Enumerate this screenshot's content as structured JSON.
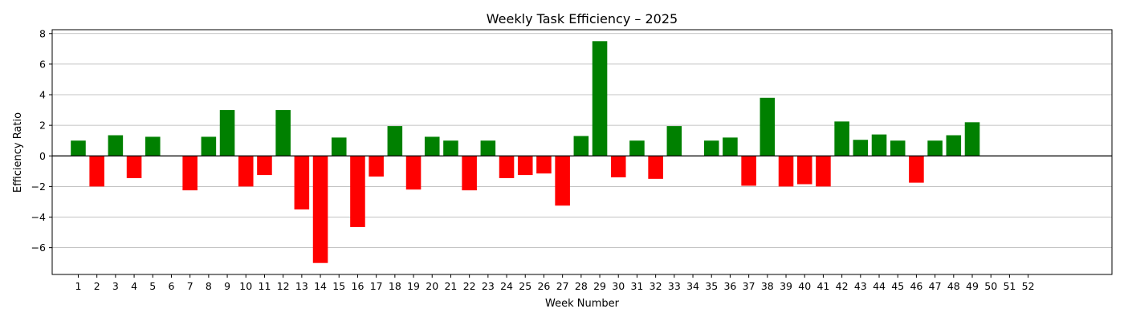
{
  "chart_data": {
    "type": "bar",
    "title": "Weekly Task Efficiency – 2025",
    "xlabel": "Week Number",
    "ylabel": "Efficiency Ratio",
    "ylim": [
      -7.75,
      8.25
    ],
    "yticks": [
      -6,
      -4,
      -2,
      0,
      2,
      4,
      6,
      8
    ],
    "grid": "y",
    "positive_color": "#008000",
    "negative_color": "#ff0000",
    "categories": [
      "1",
      "2",
      "3",
      "4",
      "5",
      "6",
      "7",
      "8",
      "9",
      "10",
      "11",
      "12",
      "13",
      "14",
      "15",
      "16",
      "17",
      "18",
      "19",
      "20",
      "21",
      "22",
      "23",
      "24",
      "25",
      "26",
      "27",
      "28",
      "29",
      "30",
      "31",
      "32",
      "33",
      "34",
      "35",
      "36",
      "37",
      "38",
      "39",
      "40",
      "41",
      "42",
      "43",
      "44",
      "45",
      "46",
      "47",
      "48",
      "49",
      "50",
      "51",
      "52"
    ],
    "values": [
      1.0,
      -2.0,
      1.35,
      -1.45,
      1.25,
      0,
      -2.25,
      1.25,
      3.0,
      -2.0,
      -1.25,
      3.0,
      -3.5,
      -7.0,
      1.2,
      -4.65,
      -1.35,
      1.95,
      -2.2,
      1.25,
      1.0,
      -2.25,
      1.0,
      -1.45,
      -1.25,
      -1.15,
      -3.25,
      1.3,
      7.5,
      -1.4,
      1.0,
      -1.5,
      1.95,
      0,
      1.0,
      1.2,
      -1.95,
      3.8,
      -2.0,
      -1.85,
      -2.0,
      2.25,
      1.05,
      1.4,
      1.0,
      -1.75,
      1.0,
      1.35,
      2.2,
      0,
      0,
      0
    ]
  }
}
